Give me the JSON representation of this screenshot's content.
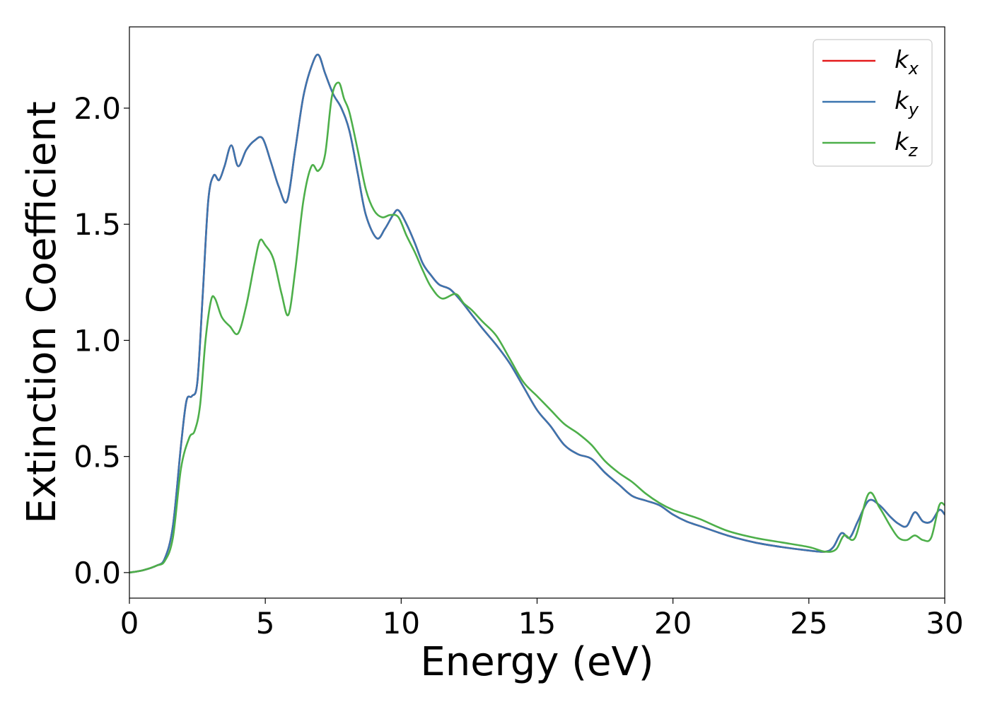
{
  "chart_data": {
    "type": "line",
    "title": "",
    "xlabel": "Energy (eV)",
    "ylabel": "Extinction Coefficient",
    "xlim": [
      0,
      30
    ],
    "ylim": [
      -0.11,
      2.35
    ],
    "xticks": [
      0,
      5,
      10,
      15,
      20,
      25,
      30
    ],
    "yticks": [
      0.0,
      0.5,
      1.0,
      1.5,
      2.0
    ],
    "xtick_labels": [
      "0",
      "5",
      "10",
      "15",
      "20",
      "25",
      "30"
    ],
    "ytick_labels": [
      "0.0",
      "0.5",
      "1.0",
      "1.5",
      "2.0"
    ],
    "grid": false,
    "legend_position": "top-right",
    "series": [
      {
        "name": "k_x",
        "label_base": "k",
        "label_sub": "x",
        "color": "#e41a1c",
        "x": [
          0,
          0.5,
          1.0,
          1.3,
          1.6,
          1.9,
          2.1,
          2.3,
          2.5,
          2.7,
          2.9,
          3.1,
          3.3,
          3.5,
          3.75,
          4.0,
          4.3,
          4.6,
          4.9,
          5.2,
          5.5,
          5.8,
          6.1,
          6.4,
          6.7,
          6.95,
          7.2,
          7.5,
          7.8,
          8.1,
          8.4,
          8.7,
          9.1,
          9.4,
          9.7,
          9.9,
          10.2,
          10.5,
          10.8,
          11.1,
          11.4,
          11.8,
          12.2,
          12.6,
          13.0,
          13.5,
          14.0,
          14.5,
          15.0,
          15.5,
          16.0,
          16.5,
          17.0,
          17.5,
          18.0,
          18.5,
          19.0,
          19.5,
          20.0,
          20.5,
          21.0,
          22.0,
          23.0,
          24.0,
          25.0,
          25.6,
          25.9,
          26.2,
          26.5,
          26.8,
          27.2,
          27.6,
          28.0,
          28.3,
          28.6,
          28.9,
          29.2,
          29.5,
          29.8,
          30.0
        ],
        "y": [
          0.0,
          0.01,
          0.03,
          0.06,
          0.2,
          0.55,
          0.74,
          0.76,
          0.82,
          1.2,
          1.6,
          1.71,
          1.69,
          1.75,
          1.84,
          1.75,
          1.82,
          1.86,
          1.87,
          1.77,
          1.66,
          1.6,
          1.82,
          2.05,
          2.18,
          2.23,
          2.15,
          2.06,
          2.0,
          1.9,
          1.72,
          1.54,
          1.44,
          1.48,
          1.54,
          1.56,
          1.5,
          1.42,
          1.33,
          1.28,
          1.24,
          1.22,
          1.17,
          1.11,
          1.05,
          0.98,
          0.9,
          0.8,
          0.7,
          0.63,
          0.55,
          0.51,
          0.49,
          0.43,
          0.38,
          0.33,
          0.31,
          0.29,
          0.25,
          0.22,
          0.2,
          0.16,
          0.13,
          0.11,
          0.095,
          0.09,
          0.11,
          0.17,
          0.15,
          0.22,
          0.31,
          0.29,
          0.24,
          0.21,
          0.2,
          0.26,
          0.22,
          0.22,
          0.27,
          0.25
        ]
      },
      {
        "name": "k_y",
        "label_base": "k",
        "label_sub": "y",
        "color": "#3b75af",
        "x": [
          0,
          0.5,
          1.0,
          1.3,
          1.6,
          1.9,
          2.1,
          2.3,
          2.5,
          2.7,
          2.9,
          3.1,
          3.3,
          3.5,
          3.75,
          4.0,
          4.3,
          4.6,
          4.9,
          5.2,
          5.5,
          5.8,
          6.1,
          6.4,
          6.7,
          6.95,
          7.2,
          7.5,
          7.8,
          8.1,
          8.4,
          8.7,
          9.1,
          9.4,
          9.7,
          9.9,
          10.2,
          10.5,
          10.8,
          11.1,
          11.4,
          11.8,
          12.2,
          12.6,
          13.0,
          13.5,
          14.0,
          14.5,
          15.0,
          15.5,
          16.0,
          16.5,
          17.0,
          17.5,
          18.0,
          18.5,
          19.0,
          19.5,
          20.0,
          20.5,
          21.0,
          22.0,
          23.0,
          24.0,
          25.0,
          25.6,
          25.9,
          26.2,
          26.5,
          26.8,
          27.2,
          27.6,
          28.0,
          28.3,
          28.6,
          28.9,
          29.2,
          29.5,
          29.8,
          30.0
        ],
        "y": [
          0.0,
          0.01,
          0.03,
          0.06,
          0.2,
          0.55,
          0.74,
          0.76,
          0.82,
          1.2,
          1.6,
          1.71,
          1.69,
          1.75,
          1.84,
          1.75,
          1.82,
          1.86,
          1.87,
          1.77,
          1.66,
          1.6,
          1.82,
          2.05,
          2.18,
          2.23,
          2.15,
          2.06,
          2.0,
          1.9,
          1.72,
          1.54,
          1.44,
          1.48,
          1.54,
          1.56,
          1.5,
          1.42,
          1.33,
          1.28,
          1.24,
          1.22,
          1.17,
          1.11,
          1.05,
          0.98,
          0.9,
          0.8,
          0.7,
          0.63,
          0.55,
          0.51,
          0.49,
          0.43,
          0.38,
          0.33,
          0.31,
          0.29,
          0.25,
          0.22,
          0.2,
          0.16,
          0.13,
          0.11,
          0.095,
          0.09,
          0.11,
          0.17,
          0.15,
          0.22,
          0.31,
          0.29,
          0.24,
          0.21,
          0.2,
          0.26,
          0.22,
          0.22,
          0.27,
          0.25
        ]
      },
      {
        "name": "k_z",
        "label_base": "k",
        "label_sub": "z",
        "color": "#4daf4a",
        "x": [
          0,
          0.5,
          1.0,
          1.3,
          1.6,
          1.9,
          2.2,
          2.4,
          2.6,
          2.8,
          3.0,
          3.15,
          3.4,
          3.7,
          4.0,
          4.3,
          4.6,
          4.8,
          5.0,
          5.3,
          5.6,
          5.85,
          6.1,
          6.4,
          6.7,
          6.95,
          7.2,
          7.45,
          7.7,
          7.9,
          8.1,
          8.4,
          8.7,
          9.0,
          9.3,
          9.6,
          9.9,
          10.2,
          10.5,
          10.8,
          11.1,
          11.5,
          12.0,
          12.3,
          12.6,
          13.0,
          13.5,
          14.0,
          14.5,
          15.0,
          15.5,
          16.0,
          16.5,
          17.0,
          17.5,
          18.0,
          18.5,
          19.0,
          19.5,
          20.0,
          20.5,
          21.0,
          22.0,
          23.0,
          24.0,
          25.0,
          25.6,
          26.0,
          26.3,
          26.7,
          27.2,
          27.6,
          28.0,
          28.3,
          28.6,
          28.9,
          29.2,
          29.5,
          29.8,
          30.0
        ],
        "y": [
          0.0,
          0.01,
          0.03,
          0.05,
          0.15,
          0.45,
          0.58,
          0.61,
          0.72,
          1.0,
          1.17,
          1.18,
          1.1,
          1.06,
          1.03,
          1.15,
          1.33,
          1.43,
          1.41,
          1.35,
          1.2,
          1.11,
          1.3,
          1.6,
          1.75,
          1.73,
          1.8,
          2.05,
          2.11,
          2.04,
          1.98,
          1.82,
          1.65,
          1.56,
          1.53,
          1.54,
          1.53,
          1.45,
          1.38,
          1.3,
          1.23,
          1.18,
          1.2,
          1.16,
          1.13,
          1.08,
          1.02,
          0.92,
          0.82,
          0.76,
          0.7,
          0.64,
          0.6,
          0.55,
          0.48,
          0.43,
          0.39,
          0.34,
          0.3,
          0.27,
          0.25,
          0.23,
          0.18,
          0.15,
          0.13,
          0.11,
          0.09,
          0.1,
          0.16,
          0.15,
          0.34,
          0.28,
          0.2,
          0.15,
          0.14,
          0.16,
          0.14,
          0.15,
          0.29,
          0.29
        ]
      }
    ]
  }
}
